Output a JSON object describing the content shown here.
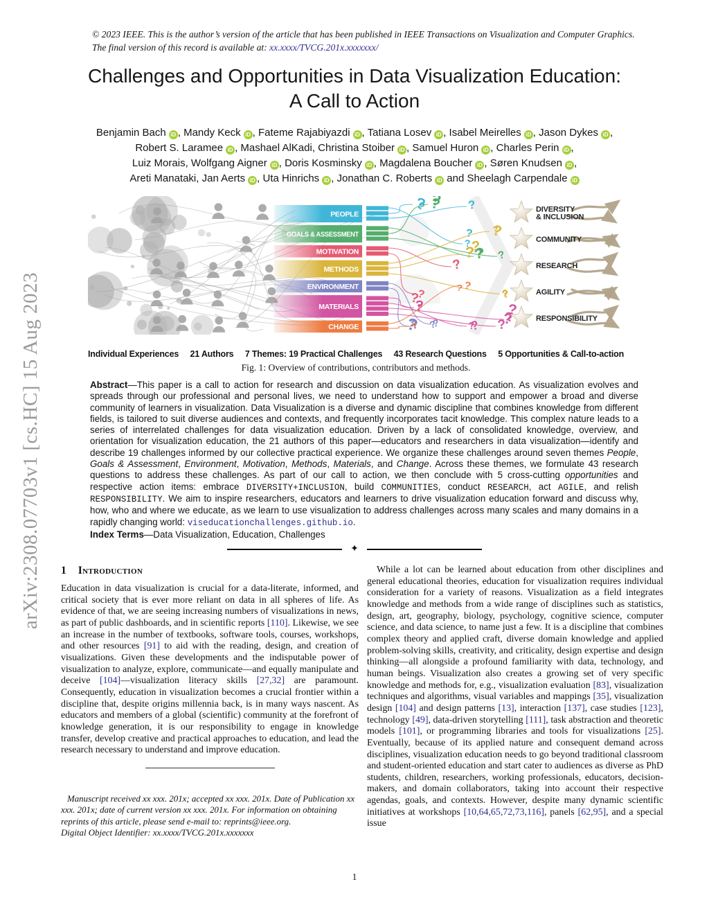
{
  "page": {
    "arxiv_sidebar": "arXiv:2308.07703v1  [cs.HC]  15 Aug 2023",
    "page_number": "1"
  },
  "notice": {
    "text": "© 2023 IEEE. This is the author’s version of the article that has been published in IEEE Transactions on Visualization and Computer Graphics. The final version of this record is available at: ",
    "link": "xx.xxxx/TVCG.201x.xxxxxxx/"
  },
  "title": {
    "line1": "Challenges and Opportunities in Data Visualization Education:",
    "line2": "A Call to Action"
  },
  "authors": {
    "lines": [
      [
        {
          "name": "Benjamin Bach",
          "orcid": true,
          "sep": ", "
        },
        {
          "name": "Mandy Keck",
          "orcid": true,
          "sep": ", "
        },
        {
          "name": "Fateme Rajabiyazdi",
          "orcid": true,
          "sep": ", "
        },
        {
          "name": "Tatiana Losev",
          "orcid": true,
          "sep": ", "
        },
        {
          "name": "Isabel Meirelles",
          "orcid": true,
          "sep": ", "
        },
        {
          "name": "Jason Dykes",
          "orcid": true,
          "sep": ","
        }
      ],
      [
        {
          "name": "Robert S. Laramee",
          "orcid": true,
          "sep": ", "
        },
        {
          "name": "Mashael AlKadi",
          "orcid": false,
          "sep": ", "
        },
        {
          "name": "Christina Stoiber",
          "orcid": true,
          "sep": ", "
        },
        {
          "name": "Samuel Huron",
          "orcid": true,
          "sep": ", "
        },
        {
          "name": "Charles Perin",
          "orcid": true,
          "sep": ","
        }
      ],
      [
        {
          "name": "Luiz Morais",
          "orcid": false,
          "sep": ", "
        },
        {
          "name": "Wolfgang Aigner",
          "orcid": true,
          "sep": ", "
        },
        {
          "name": "Doris Kosminsky",
          "orcid": true,
          "sep": ", "
        },
        {
          "name": "Magdalena Boucher",
          "orcid": true,
          "sep": ", "
        },
        {
          "name": "Søren Knudsen",
          "orcid": true,
          "sep": ","
        }
      ],
      [
        {
          "name": "Areti Manataki",
          "orcid": false,
          "sep": ", "
        },
        {
          "name": "Jan Aerts",
          "orcid": true,
          "sep": ", "
        },
        {
          "name": "Uta Hinrichs",
          "orcid": true,
          "sep": ", "
        },
        {
          "name": "Jonathan C. Roberts",
          "orcid": true,
          "sep": " and "
        },
        {
          "name": "Sheelagh Carpendale",
          "orcid": true,
          "sep": ""
        }
      ]
    ]
  },
  "figure": {
    "themes": [
      {
        "label": "PEOPLE",
        "color": "#3fb6d8",
        "challenges": 3
      },
      {
        "label": "GOALS & ASSESSMENT",
        "color": "#54ad6c",
        "challenges": 3
      },
      {
        "label": "MOTIVATION",
        "color": "#e55a73",
        "challenges": 2
      },
      {
        "label": "METHODS",
        "color": "#dab53d",
        "challenges": 3
      },
      {
        "label": "ENVIRONMENT",
        "color": "#8084c2",
        "challenges": 2
      },
      {
        "label": "MATERIALS",
        "color": "#d355a1",
        "challenges": 4
      },
      {
        "label": "CHANGE",
        "color": "#ed7c43",
        "challenges": 2
      }
    ],
    "opportunities": [
      {
        "label": [
          "DIVERSITY",
          "& INCLUSION"
        ]
      },
      {
        "label": [
          "COMMUNITY"
        ]
      },
      {
        "label": [
          "RESEARCH"
        ]
      },
      {
        "label": [
          "AGILITY"
        ]
      },
      {
        "label": [
          "RESPONSIBILITY"
        ]
      }
    ],
    "stats": [
      "Individual Experiences",
      "21 Authors",
      "7 Themes: 19 Practical Challenges",
      "43 Research Questions",
      "5 Opportunities & Call-to-action"
    ],
    "caption": "Fig. 1: Overview of contributions, contributors and methods."
  },
  "abstract": {
    "segments": [
      {
        "t": "Abstract",
        "s": "b"
      },
      {
        "t": "—This paper is a call to action for research and discussion on data visualization education. As visualization evolves and spreads through our professional and personal lives, we need to understand how to support and empower a broad and diverse community of learners in visualization. Data Visualization is a diverse and dynamic discipline that combines knowledge from different fields, is tailored to suit diverse audiences and contexts, and frequently incorporates tacit knowledge. This complex nature leads to a series of interrelated challenges for data visualization education. Driven by a lack of consolidated knowledge, overview, and orientation for visualization education, the 21 authors of this paper—educators and researchers in data visualization—identify and describe 19 challenges informed by our collective practical experience. We organize these challenges around seven themes "
      },
      {
        "t": "People",
        "s": "i"
      },
      {
        "t": ", "
      },
      {
        "t": "Goals & Assessment",
        "s": "i"
      },
      {
        "t": ", "
      },
      {
        "t": "Environment",
        "s": "i"
      },
      {
        "t": ", "
      },
      {
        "t": "Motivation",
        "s": "i"
      },
      {
        "t": ", "
      },
      {
        "t": "Methods",
        "s": "i"
      },
      {
        "t": ", "
      },
      {
        "t": "Materials",
        "s": "i"
      },
      {
        "t": ", and "
      },
      {
        "t": "Change",
        "s": "i"
      },
      {
        "t": ". Across these themes, we formulate 43 research questions to address these challenges. As part of our call to action, we then conclude with 5 cross-cutting "
      },
      {
        "t": "opportunities",
        "s": "i"
      },
      {
        "t": " and respective action items: embrace "
      },
      {
        "t": "DIVERSITY+INCLUSION",
        "s": "mono"
      },
      {
        "t": ", build "
      },
      {
        "t": "COMMUNITIES",
        "s": "mono"
      },
      {
        "t": ", conduct "
      },
      {
        "t": "RESEARCH",
        "s": "mono"
      },
      {
        "t": ", act "
      },
      {
        "t": "AGILE",
        "s": "mono"
      },
      {
        "t": ", and relish "
      },
      {
        "t": "RESPONSIBILITY",
        "s": "mono"
      },
      {
        "t": ". We aim to inspire researchers, educators and learners to drive visualization education forward and discuss why, how, who and where we educate, as we learn to use visualization to address challenges across many scales and many domains in a rapidly changing world: "
      },
      {
        "t": "viseducationchallenges.github.io",
        "s": "monolink"
      },
      {
        "t": "."
      }
    ]
  },
  "index_terms": {
    "segments": [
      {
        "t": "Index Terms",
        "s": "b"
      },
      {
        "t": "—Data Visualization, Education, Challenges"
      }
    ]
  },
  "sections": {
    "intro": {
      "number": "1",
      "title": "Introduction"
    }
  },
  "columns": {
    "left": {
      "segments": [
        {
          "t": "Education in data visualization is crucial for a data-literate, informed, and critical society that is ever more reliant on data in all spheres of life. As evidence of that, we are seeing increasing numbers of visualizations in news, as part of public dashboards, and in scientific reports "
        },
        {
          "t": "[110]",
          "s": "cite"
        },
        {
          "t": ". Likewise, we see an increase in the number of textbooks, software tools, courses, workshops, and other resources "
        },
        {
          "t": "[91]",
          "s": "cite"
        },
        {
          "t": " to aid with the reading, design, and creation of visualizations. Given these developments and the indisputable power of visualization to analyze, explore, communicate—and equally manipulate and deceive "
        },
        {
          "t": "[104]",
          "s": "cite"
        },
        {
          "t": "—visualization literacy skills "
        },
        {
          "t": "[27,32]",
          "s": "cite"
        },
        {
          "t": " are paramount. Consequently, education in visualization becomes a crucial frontier within a discipline that, despite origins millennia back, is in many ways nascent. As educators and members of a global (scientific) community at the forefront of knowledge generation, it is our responsibility to engage in knowledge transfer, develop creative and practical approaches to education, and lead the research necessary to understand and improve education."
        }
      ]
    },
    "right": {
      "segments": [
        {
          "t": "While a lot can be learned about education from other disciplines and general educational theories, education for visualization requires individual consideration for a variety of reasons. Visualization as a field integrates knowledge and methods from a wide range of disciplines such as statistics, design, art, geography, biology, psychology, cognitive science, computer science, and data science, to name just a few. It is a discipline that combines complex theory and applied craft, diverse domain knowledge and applied problem-solving skills, creativity, and criticality, design expertise and design thinking—all alongside a profound familiarity with data, technology, and human beings. Visualization also creates a growing set of very specific knowledge and methods for, e.g., visualization evaluation "
        },
        {
          "t": "[83]",
          "s": "cite"
        },
        {
          "t": ", visualization techniques and algorithms, visual variables and mappings "
        },
        {
          "t": "[35]",
          "s": "cite"
        },
        {
          "t": ", visualization design "
        },
        {
          "t": "[104]",
          "s": "cite"
        },
        {
          "t": " and design patterns "
        },
        {
          "t": "[13]",
          "s": "cite"
        },
        {
          "t": ", interaction "
        },
        {
          "t": "[137]",
          "s": "cite"
        },
        {
          "t": ", case studies "
        },
        {
          "t": "[123]",
          "s": "cite"
        },
        {
          "t": ", technology "
        },
        {
          "t": "[49]",
          "s": "cite"
        },
        {
          "t": ", data-driven storytelling "
        },
        {
          "t": "[111]",
          "s": "cite"
        },
        {
          "t": ", task abstraction and theoretic models "
        },
        {
          "t": "[101]",
          "s": "cite"
        },
        {
          "t": ", or programming libraries and tools for visualizations "
        },
        {
          "t": "[25]",
          "s": "cite"
        },
        {
          "t": ". Eventually, because of its applied nature and consequent demand across disciplines, visualization education needs to go beyond traditional classroom and student-oriented education and start cater to audiences as diverse as PhD students, children, researchers, working professionals, educators, decision-makers, and domain collaborators, taking into account their respective agendas, goals, and contexts. However, despite many dynamic scientific initiatives at workshops "
        },
        {
          "t": "[10,64,65,72,73,116]",
          "s": "cite"
        },
        {
          "t": ", panels "
        },
        {
          "t": "[62,95]",
          "s": "cite"
        },
        {
          "t": ", and a special issue"
        }
      ]
    }
  },
  "footnote": {
    "p1": "Manuscript received xx xxx. 201x; accepted xx xxx. 201x. Date of Publication xx xxx. 201x; date of current version xx xxx. 201x. For information on obtaining reprints of this article, please send e-mail to: reprints@ieee.org.",
    "p2": "Digital Object Identifier: xx.xxxx/TVCG.201x.xxxxxxx"
  }
}
